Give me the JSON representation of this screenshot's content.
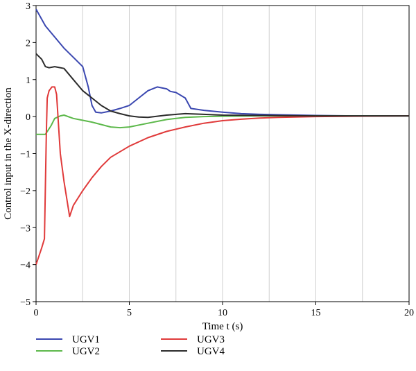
{
  "chart_data": {
    "type": "line",
    "xlabel": "Time t (s)",
    "ylabel": "Control input in the X-direction",
    "xlim": [
      0,
      20
    ],
    "ylim": [
      -5,
      3
    ],
    "xticks": [
      0,
      5,
      10,
      15,
      20
    ],
    "yticks": [
      -5,
      -4,
      -3,
      -2,
      -1,
      0,
      1,
      2,
      3
    ],
    "xgrid_step": 2.5,
    "grid": true,
    "legend_position": "bottom",
    "series": [
      {
        "name": "UGV1",
        "color": "#3a47b0",
        "x": [
          0,
          0.5,
          1,
          1.5,
          2,
          2.5,
          2.8,
          3.0,
          3.2,
          3.5,
          4,
          4.5,
          5,
          5.5,
          6,
          6.5,
          7,
          7.2,
          7.5,
          8,
          8.3,
          9,
          10,
          11,
          12,
          13,
          14,
          15,
          17,
          20
        ],
        "y": [
          2.9,
          2.45,
          2.15,
          1.85,
          1.6,
          1.35,
          0.8,
          0.3,
          0.12,
          0.1,
          0.15,
          0.22,
          0.3,
          0.5,
          0.7,
          0.8,
          0.75,
          0.68,
          0.65,
          0.5,
          0.22,
          0.17,
          0.12,
          0.08,
          0.06,
          0.05,
          0.04,
          0.03,
          0.02,
          0.02
        ]
      },
      {
        "name": "UGV2",
        "color": "#5cb84a",
        "x": [
          0,
          0.5,
          0.8,
          1.0,
          1.3,
          1.5,
          2,
          3,
          4,
          4.5,
          5,
          6,
          7,
          8,
          9,
          10,
          12,
          15,
          20
        ],
        "y": [
          -0.48,
          -0.48,
          -0.25,
          -0.05,
          0.02,
          0.04,
          -0.05,
          -0.15,
          -0.28,
          -0.3,
          -0.28,
          -0.18,
          -0.08,
          -0.02,
          0.0,
          0.01,
          0.02,
          0.02,
          0.02
        ]
      },
      {
        "name": "UGV3",
        "color": "#e03a3a",
        "x": [
          0,
          0.1,
          0.3,
          0.45,
          0.55,
          0.6,
          0.7,
          0.85,
          1.0,
          1.1,
          1.2,
          1.3,
          1.5,
          1.8,
          2.0,
          2.5,
          3,
          3.5,
          4,
          5,
          6,
          7,
          8,
          9,
          10,
          11,
          12,
          13,
          15,
          17,
          20
        ],
        "y": [
          -4.0,
          -3.85,
          -3.55,
          -3.3,
          -0.5,
          0.5,
          0.7,
          0.8,
          0.8,
          0.6,
          -0.2,
          -1.0,
          -1.75,
          -2.7,
          -2.4,
          -2.0,
          -1.65,
          -1.35,
          -1.1,
          -0.8,
          -0.57,
          -0.4,
          -0.28,
          -0.18,
          -0.11,
          -0.07,
          -0.04,
          -0.02,
          0.0,
          0.01,
          0.02
        ]
      },
      {
        "name": "UGV4",
        "color": "#2b2b2b",
        "x": [
          0,
          0.3,
          0.5,
          0.7,
          1,
          1.5,
          2,
          2.5,
          3,
          3.5,
          4,
          4.5,
          5,
          5.5,
          6,
          7,
          8,
          9,
          10,
          12,
          15,
          20
        ],
        "y": [
          1.7,
          1.55,
          1.35,
          1.32,
          1.35,
          1.3,
          1.0,
          0.7,
          0.5,
          0.3,
          0.15,
          0.08,
          0.02,
          -0.01,
          -0.02,
          0.04,
          0.08,
          0.06,
          0.04,
          0.03,
          0.02,
          0.02
        ]
      }
    ]
  },
  "legend": [
    {
      "name": "UGV1",
      "color": "#3a47b0"
    },
    {
      "name": "UGV3",
      "color": "#e03a3a"
    },
    {
      "name": "UGV2",
      "color": "#5cb84a"
    },
    {
      "name": "UGV4",
      "color": "#2b2b2b"
    }
  ]
}
